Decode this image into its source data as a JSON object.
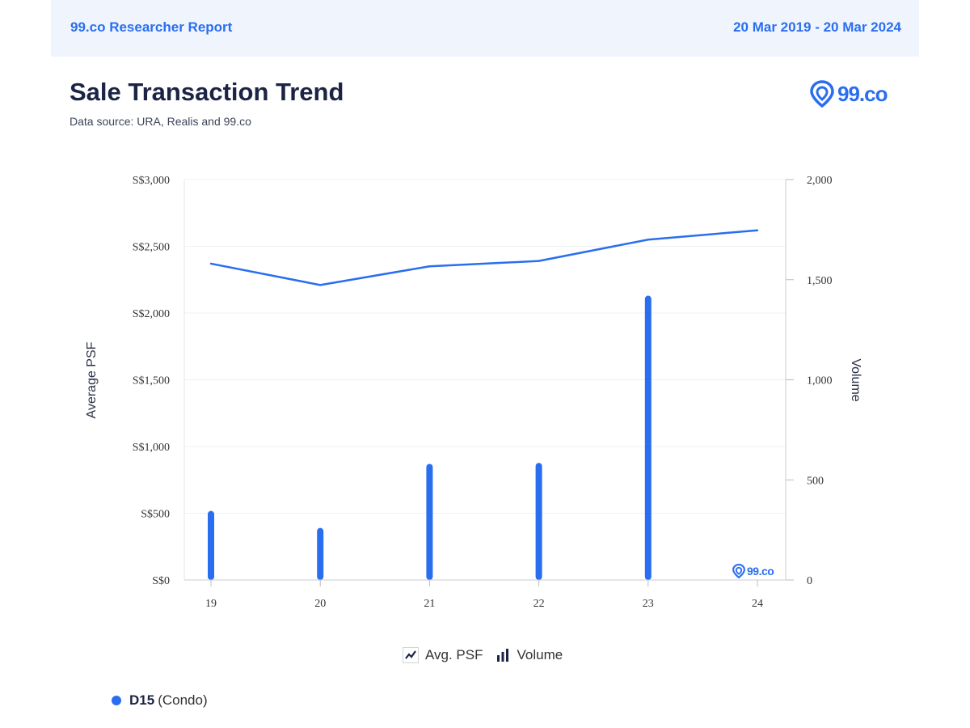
{
  "header": {
    "report_title": "99.co Researcher Report",
    "date_range": "20 Mar 2019 - 20 Mar 2024"
  },
  "page": {
    "title": "Sale Transaction Trend",
    "source": "Data source: URA, Realis and 99.co",
    "brand": "99.co",
    "watermark": "99.co"
  },
  "legend": {
    "line_label": "Avg. PSF",
    "bar_label": "Volume"
  },
  "district": {
    "name": "D15",
    "type": "(Condo)"
  },
  "colors": {
    "accent": "#2a6ef0"
  },
  "chart_data": {
    "type": "bar",
    "categories": [
      "19",
      "20",
      "21",
      "22",
      "23",
      "24"
    ],
    "series": [
      {
        "name": "Avg. PSF",
        "kind": "line",
        "axis": "left",
        "values": [
          2370,
          2210,
          2350,
          2390,
          2550,
          2620
        ]
      },
      {
        "name": "Volume",
        "kind": "bar",
        "axis": "right",
        "values": [
          345,
          260,
          580,
          585,
          1420,
          0
        ]
      }
    ],
    "ylabel": "Average PSF",
    "y2label": "Volume",
    "ylim": [
      0,
      3000
    ],
    "y2lim": [
      0,
      2000
    ],
    "yticks": [
      "S$0",
      "S$500",
      "S$1,000",
      "S$1,500",
      "S$2,000",
      "S$2,500",
      "S$3,000"
    ],
    "y2ticks": [
      "0",
      "500",
      "1,000",
      "1,500",
      "2,000"
    ],
    "grid": true
  }
}
